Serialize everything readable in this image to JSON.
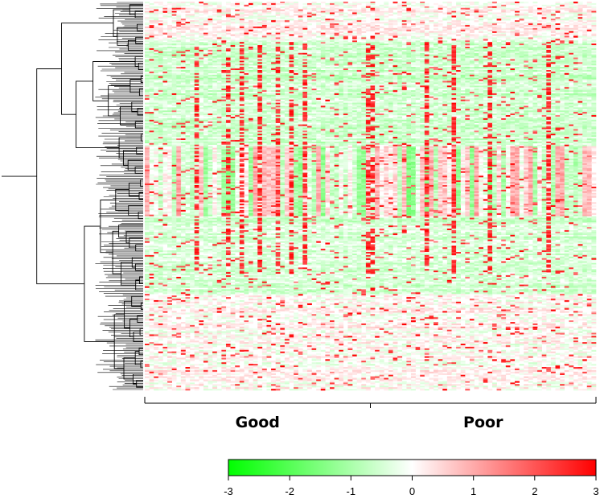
{
  "chart_data": {
    "type": "heatmap",
    "title": "",
    "groups": [
      {
        "label": "Good"
      },
      {
        "label": "Poor"
      }
    ],
    "color_scale": {
      "min": -3,
      "max": 3,
      "ticks": [
        "-3",
        "-2",
        "-1",
        "0",
        "1",
        "2",
        "3"
      ],
      "low_color": "#00ff00",
      "mid_color": "#ffffff",
      "high_color": "#ff0000"
    },
    "row_dendrogram": true,
    "column_dendrogram": false,
    "n_columns": 100,
    "n_rows": 250
  }
}
